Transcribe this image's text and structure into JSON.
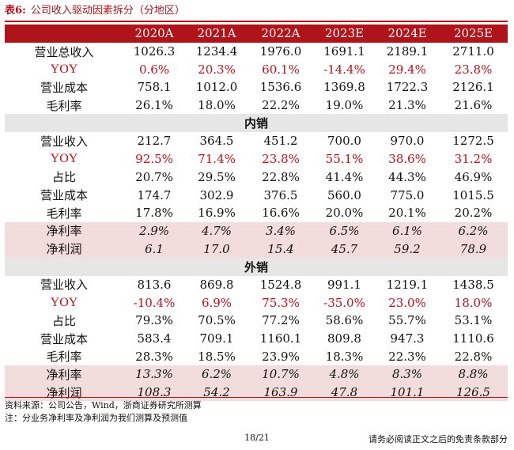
{
  "title": {
    "label": "表6:",
    "text": "公司收入驱动因素拆分（分地区）"
  },
  "columns": [
    "",
    "2020A",
    "2021A",
    "2022A",
    "2023E",
    "2024E",
    "2025E"
  ],
  "total_rows": [
    {
      "label": "营业总收入",
      "type": "normal",
      "values": [
        "1026.3",
        "1234.4",
        "1976.0",
        "1691.1",
        "2189.1",
        "2711.0"
      ]
    },
    {
      "label": "YOY",
      "type": "yoy",
      "values": [
        "0.6%",
        "20.3%",
        "60.1%",
        "-14.4%",
        "29.4%",
        "23.8%"
      ]
    },
    {
      "label": "营业成本",
      "type": "normal",
      "values": [
        "758.1",
        "1012.0",
        "1536.6",
        "1369.8",
        "1722.3",
        "2126.1"
      ]
    },
    {
      "label": "毛利率",
      "type": "normal",
      "values": [
        "26.1%",
        "18.0%",
        "22.2%",
        "19.0%",
        "21.3%",
        "21.6%"
      ]
    }
  ],
  "sections": [
    {
      "name": "内销",
      "rows": [
        {
          "label": "营业收入",
          "type": "normal",
          "values": [
            "212.7",
            "364.5",
            "451.2",
            "700.0",
            "970.0",
            "1272.5"
          ]
        },
        {
          "label": "YOY",
          "type": "yoy",
          "values": [
            "92.5%",
            "71.4%",
            "23.8%",
            "55.1%",
            "38.6%",
            "31.2%"
          ]
        },
        {
          "label": "占比",
          "type": "normal",
          "values": [
            "20.7%",
            "29.5%",
            "22.8%",
            "41.4%",
            "44.3%",
            "46.9%"
          ]
        },
        {
          "label": "营业成本",
          "type": "normal",
          "values": [
            "174.7",
            "302.9",
            "376.5",
            "560.0",
            "775.0",
            "1015.5"
          ]
        },
        {
          "label": "毛利率",
          "type": "normal",
          "values": [
            "17.8%",
            "16.9%",
            "16.6%",
            "20.0%",
            "20.1%",
            "20.2%"
          ]
        },
        {
          "label": "净利率",
          "type": "net",
          "values": [
            "2.9%",
            "4.7%",
            "3.4%",
            "6.5%",
            "6.1%",
            "6.2%"
          ]
        },
        {
          "label": "净利润",
          "type": "net",
          "values": [
            "6.1",
            "17.0",
            "15.4",
            "45.7",
            "59.2",
            "78.9"
          ]
        }
      ]
    },
    {
      "name": "外销",
      "rows": [
        {
          "label": "营业收入",
          "type": "normal",
          "values": [
            "813.6",
            "869.8",
            "1524.8",
            "991.1",
            "1219.1",
            "1438.5"
          ]
        },
        {
          "label": "YOY",
          "type": "yoy",
          "values": [
            "-10.4%",
            "6.9%",
            "75.3%",
            "-35.0%",
            "23.0%",
            "18.0%"
          ]
        },
        {
          "label": "占比",
          "type": "normal",
          "values": [
            "79.3%",
            "70.5%",
            "77.2%",
            "58.6%",
            "55.7%",
            "53.1%"
          ]
        },
        {
          "label": "营业成本",
          "type": "normal",
          "values": [
            "583.4",
            "709.1",
            "1160.1",
            "809.8",
            "947.3",
            "1110.6"
          ]
        },
        {
          "label": "毛利率",
          "type": "normal",
          "values": [
            "28.3%",
            "18.5%",
            "23.9%",
            "18.3%",
            "22.3%",
            "22.8%"
          ]
        },
        {
          "label": "净利率",
          "type": "net",
          "values": [
            "13.3%",
            "6.2%",
            "10.7%",
            "4.8%",
            "8.3%",
            "8.8%"
          ]
        },
        {
          "label": "净利润",
          "type": "net",
          "values": [
            "108.3",
            "54.2",
            "163.9",
            "47.8",
            "101.1",
            "126.5"
          ]
        }
      ]
    }
  ],
  "footnotes": {
    "source": "资料来源：公司公告，Wind，浙商证券研究所测算",
    "note": "注：分业务净利率及净利润为我们测算及预测值"
  },
  "page_number": "18/21",
  "disclaimer": "请务必阅读正文之后的免责条款部分",
  "colors": {
    "accent": "#b0141b",
    "net_row_bg": "#f2dcdc",
    "section_bg": "#e6e6e6"
  }
}
